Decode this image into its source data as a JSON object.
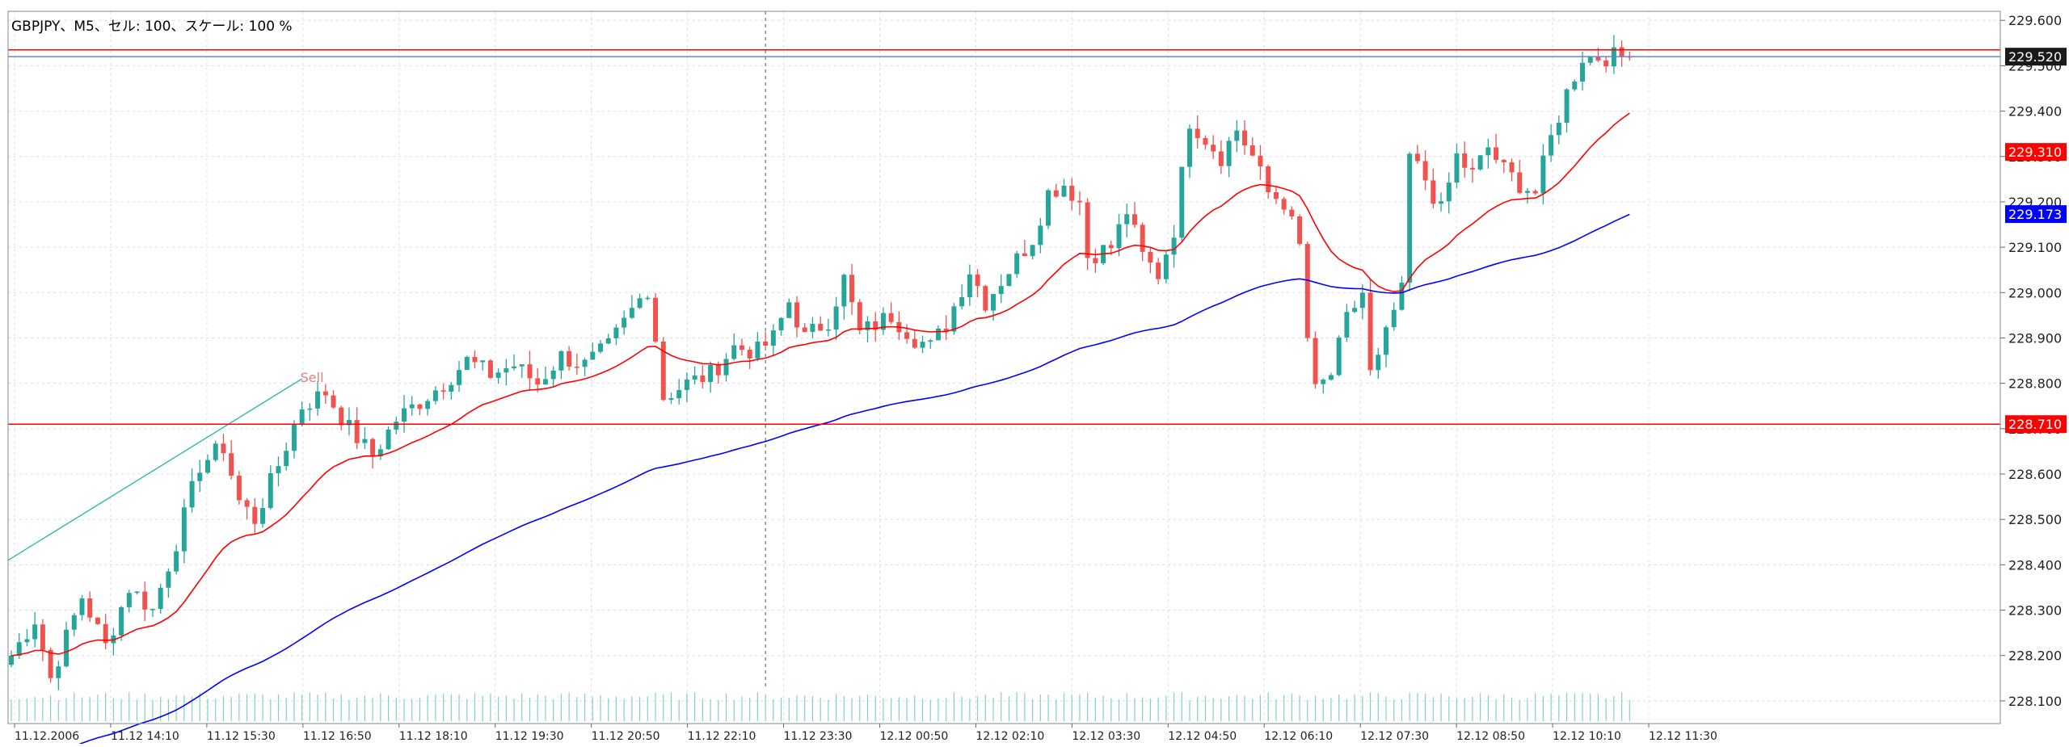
{
  "header": {
    "title": "GBPJPY、M5、セル: 100、スケール: 100 %"
  },
  "chart_data": {
    "type": "candlestick",
    "symbol": "GBPJPY",
    "timeframe": "M5",
    "ylim": [
      228.05,
      229.62
    ],
    "y_ticks": [
      "229.600",
      "229.500",
      "229.400",
      "229.300",
      "229.200",
      "229.100",
      "229.000",
      "228.900",
      "228.800",
      "228.700",
      "228.600",
      "228.500",
      "228.400",
      "228.300",
      "228.200",
      "228.100"
    ],
    "x_ticks": [
      "11.12.2006",
      "11.12 14:10",
      "11.12 15:30",
      "11.12 16:50",
      "11.12 18:10",
      "11.12 19:30",
      "11.12 20:50",
      "11.12 22:10",
      "11.12 23:30",
      "12.12 00:50",
      "12.12 02:10",
      "12.12 03:30",
      "12.12 04:50",
      "12.12 06:10",
      "12.12 07:30",
      "12.12 08:50",
      "12.12 10:10",
      "12.12 11:30"
    ],
    "bar_count": 207,
    "up_color": "#26a69a",
    "down_color": "#ef5350",
    "price_labels": [
      {
        "text": "229.520",
        "value": 229.52,
        "bg": "#1a1a1a",
        "fg": "#ffffff"
      },
      {
        "text": "229.310",
        "value": 229.31,
        "bg": "#ff0000",
        "fg": "#ffffff"
      },
      {
        "text": "229.173",
        "value": 229.173,
        "bg": "#0000ff",
        "fg": "#ffffff"
      },
      {
        "text": "228.710",
        "value": 228.71,
        "bg": "#ff0000",
        "fg": "#ffffff"
      }
    ],
    "hlines": [
      {
        "value": 229.535,
        "color": "#ff0000"
      },
      {
        "value": 229.52,
        "color": "#5b8bd6"
      },
      {
        "value": 228.71,
        "color": "#ff0000"
      }
    ],
    "trendline": {
      "from": [
        0,
        228.41
      ],
      "to": [
        37,
        228.81
      ],
      "color": "#20b2aa"
    },
    "trend_text": "Sell",
    "crosshair_index": 96,
    "anchors": [
      [
        0,
        228.2
      ],
      [
        3,
        228.28
      ],
      [
        5,
        228.15
      ],
      [
        9,
        228.33
      ],
      [
        12,
        228.22
      ],
      [
        15,
        228.35
      ],
      [
        18,
        228.3
      ],
      [
        21,
        228.45
      ],
      [
        24,
        228.62
      ],
      [
        27,
        228.66
      ],
      [
        29,
        228.54
      ],
      [
        31,
        228.5
      ],
      [
        34,
        228.62
      ],
      [
        37,
        228.75
      ],
      [
        40,
        228.78
      ],
      [
        43,
        228.7
      ],
      [
        46,
        228.64
      ],
      [
        49,
        228.72
      ],
      [
        52,
        228.76
      ],
      [
        55,
        228.8
      ],
      [
        58,
        228.85
      ],
      [
        61,
        228.82
      ],
      [
        64,
        228.84
      ],
      [
        67,
        228.8
      ],
      [
        70,
        228.86
      ],
      [
        73,
        228.84
      ],
      [
        76,
        228.88
      ],
      [
        79,
        228.96
      ],
      [
        81,
        229.01
      ],
      [
        82,
        228.9
      ],
      [
        83,
        228.77
      ],
      [
        86,
        228.8
      ],
      [
        89,
        228.82
      ],
      [
        92,
        228.88
      ],
      [
        95,
        228.87
      ],
      [
        97,
        228.9
      ],
      [
        99,
        228.98
      ],
      [
        101,
        228.9
      ],
      [
        104,
        228.94
      ],
      [
        106,
        229.03
      ],
      [
        108,
        228.91
      ],
      [
        110,
        228.93
      ],
      [
        112,
        228.95
      ],
      [
        115,
        228.9
      ],
      [
        117,
        228.88
      ],
      [
        119,
        228.93
      ],
      [
        122,
        229.05
      ],
      [
        124,
        228.98
      ],
      [
        127,
        229.05
      ],
      [
        130,
        229.12
      ],
      [
        132,
        229.22
      ],
      [
        134,
        229.24
      ],
      [
        136,
        229.2
      ],
      [
        137,
        229.08
      ],
      [
        140,
        229.1
      ],
      [
        142,
        229.18
      ],
      [
        144,
        229.08
      ],
      [
        146,
        229.04
      ],
      [
        148,
        229.14
      ],
      [
        150,
        229.38
      ],
      [
        152,
        229.34
      ],
      [
        154,
        229.3
      ],
      [
        156,
        229.36
      ],
      [
        158,
        229.3
      ],
      [
        160,
        229.22
      ],
      [
        162,
        229.2
      ],
      [
        164,
        229.1
      ],
      [
        165,
        228.9
      ],
      [
        166,
        228.78
      ],
      [
        168,
        228.82
      ],
      [
        170,
        228.94
      ],
      [
        172,
        229.0
      ],
      [
        173,
        228.82
      ],
      [
        174,
        228.85
      ],
      [
        176,
        228.96
      ],
      [
        177,
        229.0
      ],
      [
        178,
        229.3
      ],
      [
        180,
        229.25
      ],
      [
        182,
        229.18
      ],
      [
        184,
        229.3
      ],
      [
        186,
        229.26
      ],
      [
        188,
        229.32
      ],
      [
        190,
        229.27
      ],
      [
        192,
        229.24
      ],
      [
        194,
        229.22
      ],
      [
        196,
        229.34
      ],
      [
        198,
        229.44
      ],
      [
        200,
        229.52
      ]
    ]
  }
}
